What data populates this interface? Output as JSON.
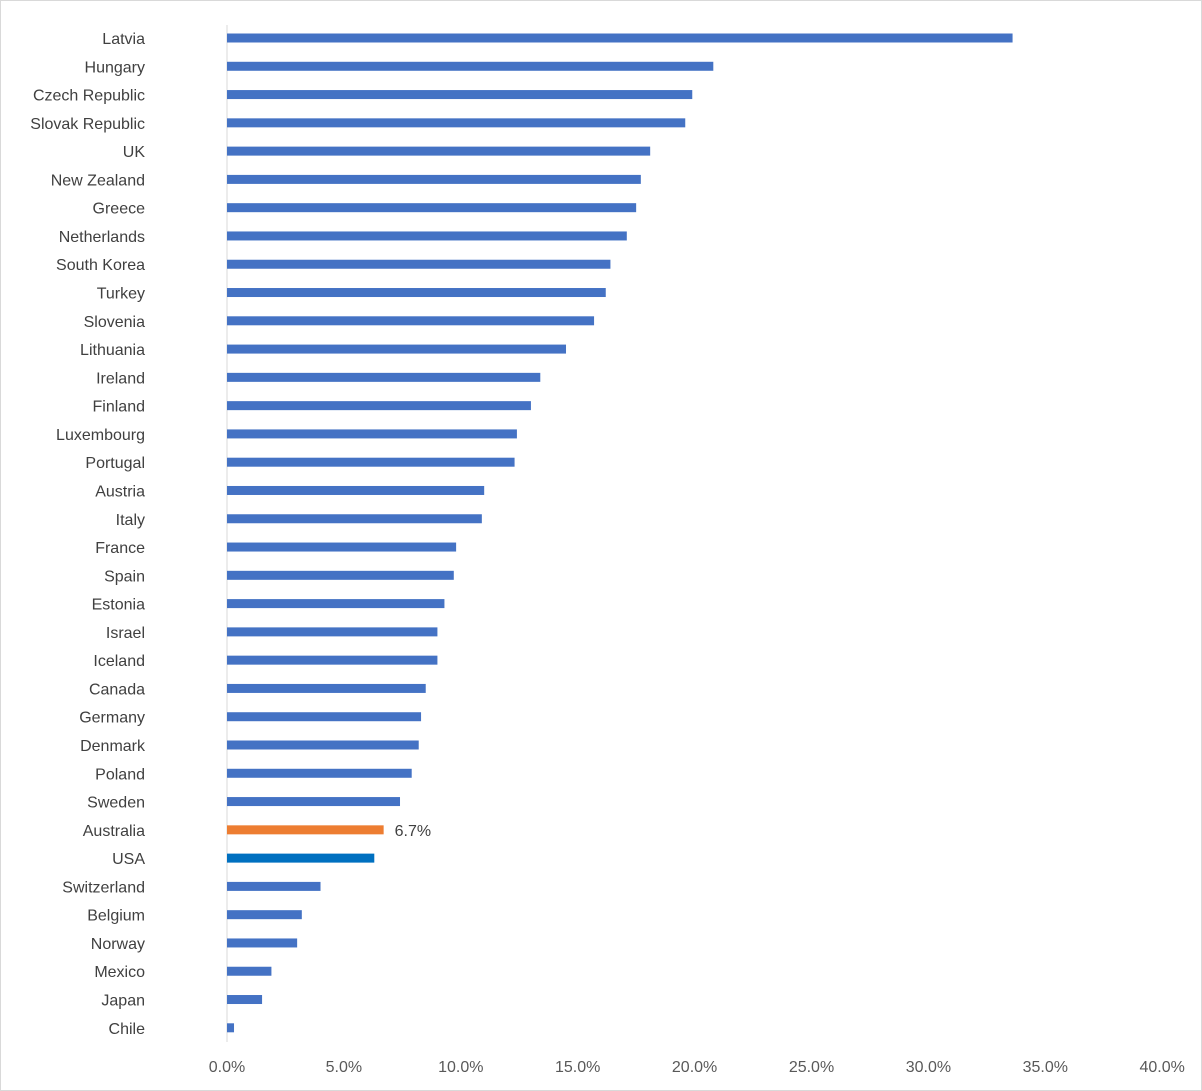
{
  "chart_data": {
    "type": "bar",
    "orientation": "horizontal",
    "title": "",
    "xlabel": "",
    "ylabel": "",
    "xlim": [
      0,
      40
    ],
    "xticks": [
      "0.0%",
      "5.0%",
      "10.0%",
      "15.0%",
      "20.0%",
      "25.0%",
      "30.0%",
      "35.0%",
      "40.0%"
    ],
    "xtick_values": [
      0,
      5,
      10,
      15,
      20,
      25,
      30,
      35,
      40
    ],
    "grid": false,
    "legend": "none",
    "default_color": "#4472c4",
    "categories": [
      "Latvia",
      "Hungary",
      "Czech Republic",
      "Slovak Republic",
      "UK",
      "New Zealand",
      "Greece",
      "Netherlands",
      "South Korea",
      "Turkey",
      "Slovenia",
      "Lithuania",
      "Ireland",
      "Finland",
      "Luxembourg",
      "Portugal",
      "Austria",
      "Italy",
      "France",
      "Spain",
      "Estonia",
      "Israel",
      "Iceland",
      "Canada",
      "Germany",
      "Denmark",
      "Poland",
      "Sweden",
      "Australia",
      "USA",
      "Switzerland",
      "Belgium",
      "Norway",
      "Mexico",
      "Japan",
      "Chile"
    ],
    "values": [
      33.6,
      20.8,
      19.9,
      19.6,
      18.1,
      17.7,
      17.5,
      17.1,
      16.4,
      16.2,
      15.7,
      14.5,
      13.4,
      13.0,
      12.4,
      12.3,
      11.0,
      10.9,
      9.8,
      9.7,
      9.3,
      9.0,
      9.0,
      8.5,
      8.3,
      8.2,
      7.9,
      7.4,
      6.7,
      6.3,
      4.0,
      3.2,
      3.0,
      1.9,
      1.5,
      0.3
    ],
    "highlights": [
      {
        "category": "Australia",
        "color": "#ed7d31",
        "label": "6.7%"
      },
      {
        "category": "USA",
        "color": "#0070c0"
      }
    ]
  }
}
